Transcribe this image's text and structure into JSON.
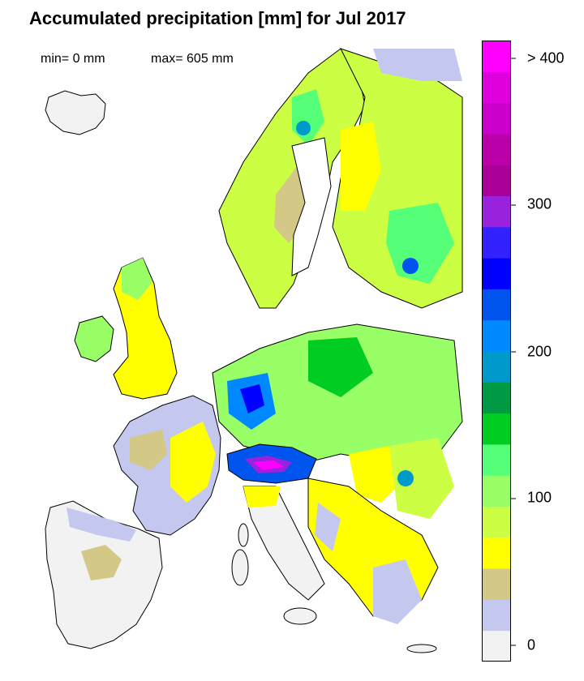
{
  "title": "Accumulated precipitation [mm] for Jul 2017",
  "stats": {
    "min_label": "min= 0 mm",
    "max_label": "max= 605 mm"
  },
  "legend": {
    "tick_labels": [
      "> 400",
      "300",
      "200",
      "100",
      "0"
    ],
    "tick_values": [
      400,
      300,
      200,
      100,
      0
    ],
    "bin_colors": [
      "#f2f2f2",
      "#c4c8ee",
      "#d4c886",
      "#ffff00",
      "#ccff44",
      "#99ff66",
      "#55ff77",
      "#00cc22",
      "#009944",
      "#0099cc",
      "#0088ff",
      "#0055ee",
      "#0000ff",
      "#3322ff",
      "#9922dd",
      "#aa0099",
      "#bb00aa",
      "#cc00cc",
      "#dd00dd",
      "#ff00ff"
    ]
  },
  "map": {
    "background_color": "#ffffff",
    "sea_color": "#ffffff",
    "border_color": "#000000",
    "areas": [
      {
        "name": "Iceland",
        "class": "0-20"
      },
      {
        "name": "Iberia",
        "class": "0-20"
      },
      {
        "name": "Italy south",
        "class": "20-40"
      },
      {
        "name": "France",
        "class": "20-60"
      },
      {
        "name": "British Isles",
        "class": "40-120"
      },
      {
        "name": "Scandinavia",
        "class": "40-140"
      },
      {
        "name": "Germany / Poland",
        "class": "80-200"
      },
      {
        "name": "Alps",
        "class": "200->400"
      },
      {
        "name": "Eastern Europe",
        "class": "60-200"
      },
      {
        "name": "Balkans",
        "class": "20-120"
      }
    ]
  }
}
